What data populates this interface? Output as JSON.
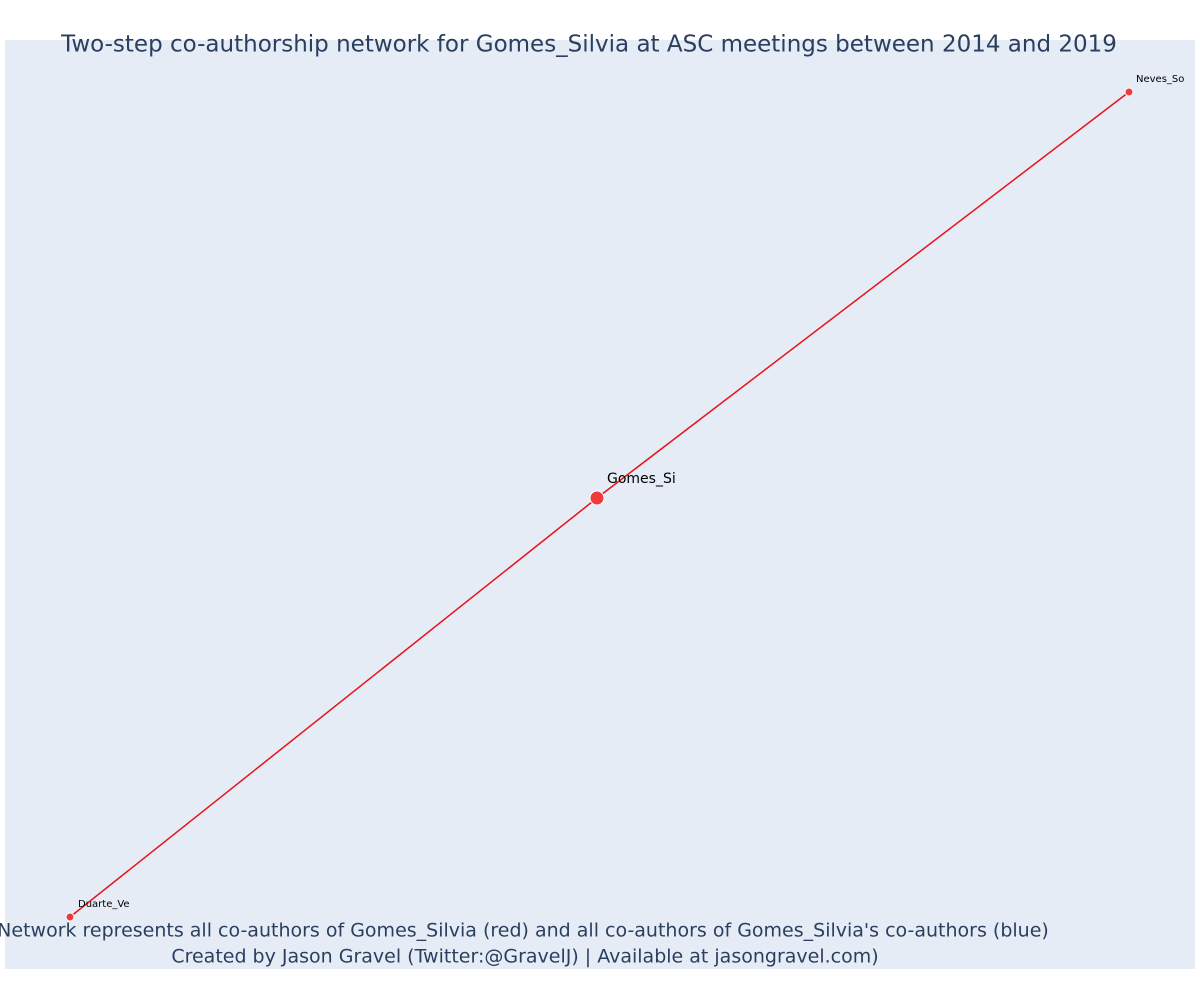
{
  "title": "Two-step co-authorship network for Gomes_Silvia at ASC meetings between 2014 and 2019",
  "nodes": [
    {
      "label": "Neves_So"
    },
    {
      "label": "Gomes_Si"
    },
    {
      "label": "Duarte_Ve"
    }
  ],
  "footer": [
    "Network represents all co-authors of Gomes_Silvia (red) and all co-authors of Gomes_Silvia's co-authors (blue)",
    "Created by Jason Gravel (Twitter:@GravelJ) | Available at jasongravel.com)"
  ]
}
